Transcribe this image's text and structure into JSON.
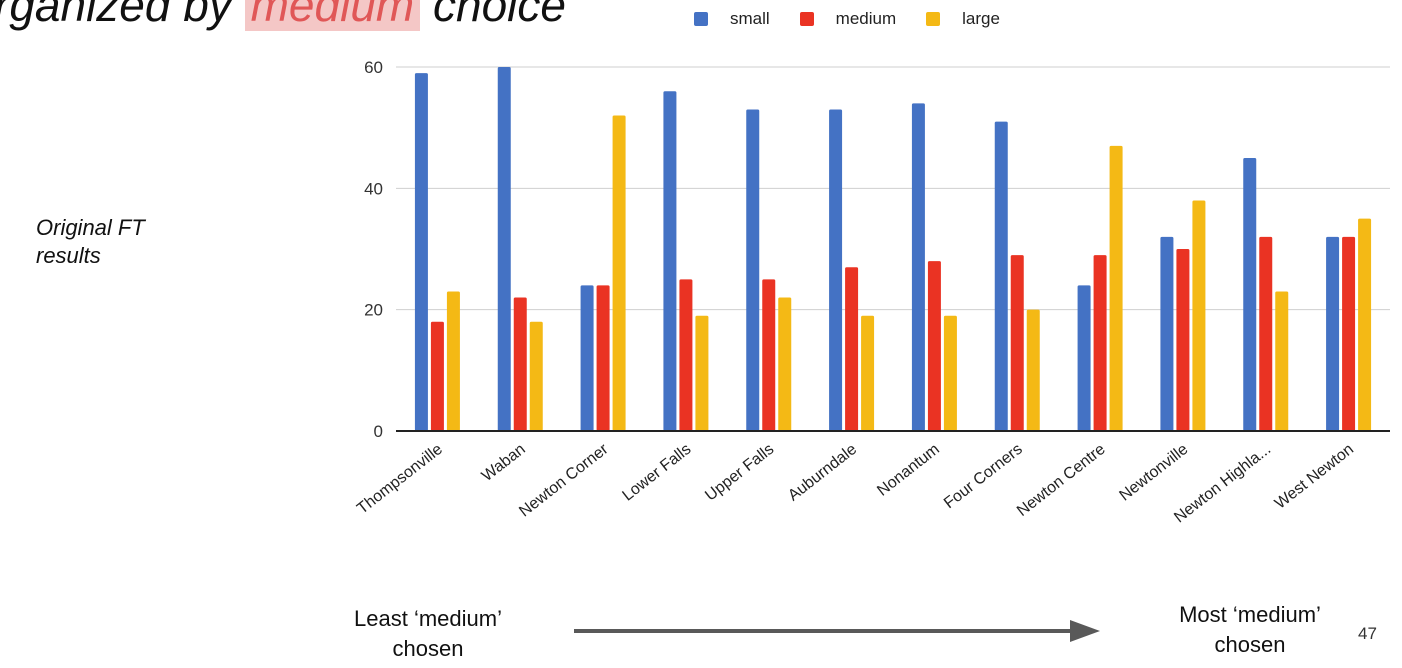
{
  "slide": {
    "title_prefix": "rganized by ",
    "title_highlight": "medium",
    "title_suffix": " choice",
    "side_note": "Original FT results",
    "left_caption": "Least ‘medium’ chosen",
    "right_caption": "Most ‘medium’ chosen",
    "page_number": "47"
  },
  "chart_data": {
    "type": "bar",
    "title": "",
    "xlabel": "",
    "ylabel": "",
    "ylim": [
      0,
      60
    ],
    "yticks": [
      "0",
      "20",
      "40",
      "60"
    ],
    "grid": true,
    "legend_position": "top",
    "categories": [
      "Thompsonville",
      "Waban",
      "Newton Corner",
      "Lower Falls",
      "Upper Falls",
      "Auburndale",
      "Nonantum",
      "Four Corners",
      "Newton Centre",
      "Newtonville",
      "Newton Highla...",
      "West Newton"
    ],
    "series": [
      {
        "name": "small",
        "color": "#4472c4",
        "values": [
          59,
          60,
          24,
          56,
          53,
          53,
          54,
          51,
          24,
          32,
          45,
          32
        ]
      },
      {
        "name": "medium",
        "color": "#ea3323",
        "values": [
          18,
          22,
          24,
          25,
          25,
          27,
          28,
          29,
          29,
          30,
          32,
          32
        ]
      },
      {
        "name": "large",
        "color": "#f4b915",
        "values": [
          23,
          18,
          52,
          19,
          22,
          19,
          19,
          20,
          47,
          38,
          23,
          35
        ]
      }
    ]
  }
}
